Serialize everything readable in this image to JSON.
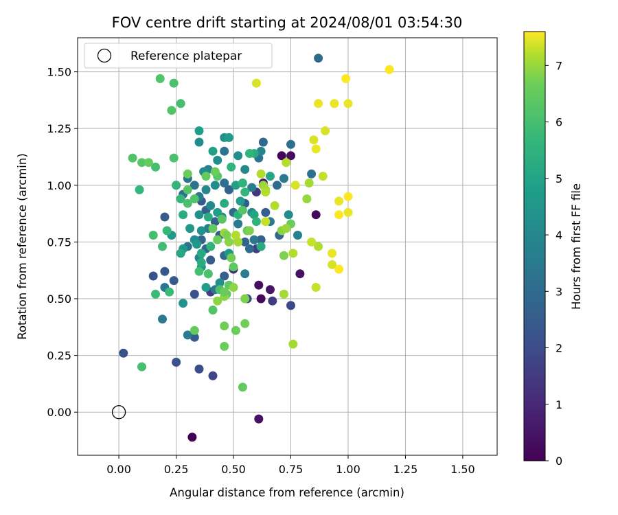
{
  "chart_data": {
    "type": "scatter",
    "title": "FOV centre drift starting at 2024/08/01 03:54:30",
    "xlabel": "Angular distance from reference (arcmin)",
    "ylabel": "Rotation from reference (arcmin)",
    "xlim": [
      -0.18,
      1.65
    ],
    "ylim": [
      -0.19,
      1.65
    ],
    "xticks": [
      "0.00",
      "0.25",
      "0.50",
      "0.75",
      "1.00",
      "1.25",
      "1.50"
    ],
    "xtick_values": [
      0,
      0.25,
      0.5,
      0.75,
      1.0,
      1.25,
      1.5
    ],
    "yticks": [
      "0.00",
      "0.25",
      "0.50",
      "0.75",
      "1.00",
      "1.25",
      "1.50"
    ],
    "ytick_values": [
      0,
      0.25,
      0.5,
      0.75,
      1.0,
      1.25,
      1.5
    ],
    "grid": true,
    "colormap": "viridis",
    "colorbar": {
      "label": "Hours from first FF file",
      "ticks": [
        "0",
        "1",
        "2",
        "3",
        "4",
        "5",
        "6",
        "7"
      ],
      "tick_values": [
        0,
        1,
        2,
        3,
        4,
        5,
        6,
        7
      ],
      "range": [
        0,
        7.6
      ]
    },
    "legend": {
      "entries": [
        "Reference platepar"
      ],
      "position": "upper-left"
    },
    "reference_point": {
      "x": 0,
      "y": 0,
      "label": "Reference platepar"
    },
    "points": [
      [
        0.32,
        -0.11,
        0.0
      ],
      [
        0.61,
        -0.03,
        0.4
      ],
      [
        0.61,
        0.56,
        0.3
      ],
      [
        0.62,
        0.5,
        0.2
      ],
      [
        0.66,
        0.54,
        0.5
      ],
      [
        0.71,
        1.13,
        0.1
      ],
      [
        0.75,
        1.13,
        0.3
      ],
      [
        0.79,
        0.61,
        0.4
      ],
      [
        0.86,
        0.87,
        0.2
      ],
      [
        0.63,
        1.01,
        0.6
      ],
      [
        0.67,
        0.49,
        1.5
      ],
      [
        0.75,
        0.47,
        1.9
      ],
      [
        0.5,
        0.63,
        1.2
      ],
      [
        0.6,
        0.97,
        1.4
      ],
      [
        0.6,
        0.72,
        1.6
      ],
      [
        0.56,
        0.5,
        2.0
      ],
      [
        0.4,
        0.53,
        1.6
      ],
      [
        0.41,
        0.16,
        1.8
      ],
      [
        0.35,
        0.19,
        2.0
      ],
      [
        0.25,
        0.22,
        2.2
      ],
      [
        0.02,
        0.26,
        2.2
      ],
      [
        0.33,
        0.33,
        2.5
      ],
      [
        0.33,
        0.52,
        2.2
      ],
      [
        0.15,
        0.6,
        2.2
      ],
      [
        0.2,
        0.62,
        2.3
      ],
      [
        0.24,
        0.58,
        2.4
      ],
      [
        0.2,
        0.86,
        2.5
      ],
      [
        0.36,
        0.93,
        2.4
      ],
      [
        0.42,
        0.84,
        2.6
      ],
      [
        0.44,
        0.78,
        2.4
      ],
      [
        0.46,
        0.6,
        2.6
      ],
      [
        0.36,
        0.76,
        2.8
      ],
      [
        0.38,
        0.72,
        2.8
      ],
      [
        0.4,
        0.67,
        2.5
      ],
      [
        0.38,
        0.89,
        2.6
      ],
      [
        0.46,
        0.69,
        2.9
      ],
      [
        0.48,
        0.98,
        2.7
      ],
      [
        0.5,
        0.88,
        2.9
      ],
      [
        0.55,
        0.92,
        2.5
      ],
      [
        0.55,
        0.75,
        2.8
      ],
      [
        0.57,
        0.72,
        3.0
      ],
      [
        0.62,
        0.76,
        2.6
      ],
      [
        0.64,
        0.88,
        2.6
      ],
      [
        0.7,
        0.78,
        2.9
      ],
      [
        0.69,
        1.0,
        3.0
      ],
      [
        0.63,
        1.19,
        2.9
      ],
      [
        0.75,
        1.18,
        3.1
      ],
      [
        0.84,
        1.05,
        3.2
      ],
      [
        0.87,
        1.56,
        3.0
      ],
      [
        0.46,
        1.15,
        3.3
      ],
      [
        0.46,
        1.01,
        3.2
      ],
      [
        0.33,
        1.0,
        3.3
      ],
      [
        0.3,
        1.03,
        3.3
      ],
      [
        0.2,
        0.55,
        3.4
      ],
      [
        0.19,
        0.41,
        3.5
      ],
      [
        0.3,
        0.34,
        3.5
      ],
      [
        0.3,
        0.73,
        3.3
      ],
      [
        0.28,
        0.96,
        3.1
      ],
      [
        0.35,
        0.95,
        3.5
      ],
      [
        0.39,
        0.81,
        3.7
      ],
      [
        0.42,
        0.54,
        3.4
      ],
      [
        0.35,
        0.68,
        3.8
      ],
      [
        0.52,
        0.83,
        3.6
      ],
      [
        0.55,
        0.61,
        3.6
      ],
      [
        0.59,
        0.76,
        3.4
      ],
      [
        0.61,
        1.12,
        3.3
      ],
      [
        0.66,
        0.84,
        3.6
      ],
      [
        0.72,
        1.03,
        3.5
      ],
      [
        0.74,
        0.87,
        4.1
      ],
      [
        0.78,
        0.78,
        3.8
      ],
      [
        0.62,
        1.15,
        3.9
      ],
      [
        0.58,
        0.99,
        3.7
      ],
      [
        0.58,
        0.88,
        4.0
      ],
      [
        0.55,
        1.07,
        4.0
      ],
      [
        0.52,
        1.13,
        4.2
      ],
      [
        0.39,
        1.07,
        3.8
      ],
      [
        0.37,
        1.06,
        4.1
      ],
      [
        0.38,
        0.98,
        4.0
      ],
      [
        0.4,
        0.91,
        4.0
      ],
      [
        0.42,
        1.0,
        4.1
      ],
      [
        0.45,
        0.86,
        4.1
      ],
      [
        0.43,
        1.11,
        4.2
      ],
      [
        0.35,
        0.87,
        4.3
      ],
      [
        0.36,
        0.8,
        4.3
      ],
      [
        0.33,
        0.76,
        4.2
      ],
      [
        0.34,
        0.74,
        4.5
      ],
      [
        0.31,
        0.81,
        4.6
      ],
      [
        0.28,
        0.72,
        4.5
      ],
      [
        0.28,
        0.48,
        4.4
      ],
      [
        0.23,
        0.78,
        4.6
      ],
      [
        0.36,
        0.64,
        4.5
      ],
      [
        0.38,
        0.55,
        4.7
      ],
      [
        0.44,
        0.57,
        4.3
      ],
      [
        0.43,
        0.88,
        4.8
      ],
      [
        0.46,
        1.21,
        4.4
      ],
      [
        0.48,
        1.21,
        4.7
      ],
      [
        0.35,
        1.19,
        4.2
      ],
      [
        0.35,
        1.24,
        4.8
      ],
      [
        0.41,
        1.15,
        4.9
      ],
      [
        0.51,
        1.0,
        4.9
      ],
      [
        0.48,
        0.7,
        4.5
      ],
      [
        0.53,
        0.93,
        4.8
      ],
      [
        0.59,
        0.87,
        5.0
      ],
      [
        0.62,
        0.73,
        5.2
      ],
      [
        0.66,
        1.04,
        5.0
      ],
      [
        0.59,
        1.14,
        5.3
      ],
      [
        0.27,
        0.7,
        5.1
      ],
      [
        0.25,
        1.0,
        5.2
      ],
      [
        0.28,
        0.87,
        5.3
      ],
      [
        0.36,
        0.7,
        5.2
      ],
      [
        0.39,
        0.86,
        5.3
      ],
      [
        0.39,
        0.61,
        5.4
      ],
      [
        0.36,
        0.66,
        5.3
      ],
      [
        0.4,
        0.73,
        5.5
      ],
      [
        0.46,
        0.92,
        5.3
      ],
      [
        0.49,
        1.08,
        5.5
      ],
      [
        0.52,
        0.87,
        5.4
      ],
      [
        0.54,
        1.01,
        5.5
      ],
      [
        0.57,
        1.14,
        5.6
      ],
      [
        0.6,
        0.84,
        5.5
      ],
      [
        0.55,
        0.97,
        5.6
      ],
      [
        0.25,
        1.0,
        5.6
      ],
      [
        0.27,
        0.94,
        5.7
      ],
      [
        0.21,
        0.8,
        5.7
      ],
      [
        0.22,
        0.53,
        5.8
      ],
      [
        0.16,
        0.52,
        5.8
      ],
      [
        0.19,
        0.73,
        5.9
      ],
      [
        0.15,
        0.78,
        6.0
      ],
      [
        0.09,
        0.98,
        5.7
      ],
      [
        0.16,
        1.08,
        6.0
      ],
      [
        0.24,
        1.12,
        6.1
      ],
      [
        0.27,
        1.36,
        6.0
      ],
      [
        0.23,
        1.33,
        6.2
      ],
      [
        0.24,
        1.45,
        6.1
      ],
      [
        0.18,
        1.47,
        6.2
      ],
      [
        0.1,
        0.2,
        6.0
      ],
      [
        0.3,
        0.92,
        6.1
      ],
      [
        0.33,
        0.94,
        6.2
      ],
      [
        0.3,
        0.98,
        6.3
      ],
      [
        0.35,
        0.62,
        6.0
      ],
      [
        0.39,
        0.61,
        6.1
      ],
      [
        0.41,
        0.45,
        6.2
      ],
      [
        0.43,
        1.04,
        6.3
      ],
      [
        0.44,
        0.54,
        6.1
      ],
      [
        0.45,
        0.85,
        6.3
      ],
      [
        0.47,
        0.52,
        6.4
      ],
      [
        0.5,
        0.64,
        6.4
      ],
      [
        0.54,
        0.89,
        6.3
      ],
      [
        0.56,
        0.8,
        6.5
      ],
      [
        0.33,
        0.36,
        6.5
      ],
      [
        0.41,
        0.81,
        6.5
      ],
      [
        0.43,
        0.76,
        6.6
      ],
      [
        0.48,
        0.56,
        6.4
      ],
      [
        0.49,
        0.68,
        6.7
      ],
      [
        0.55,
        0.5,
        6.8
      ],
      [
        0.54,
        0.11,
        6.5
      ],
      [
        0.46,
        0.29,
        6.6
      ],
      [
        0.51,
        0.36,
        6.6
      ],
      [
        0.55,
        0.39,
        6.7
      ],
      [
        0.46,
        0.38,
        6.7
      ],
      [
        0.42,
        1.06,
        6.6
      ],
      [
        0.06,
        1.12,
        6.2
      ],
      [
        0.1,
        1.1,
        6.3
      ],
      [
        0.13,
        1.1,
        6.5
      ],
      [
        0.3,
        1.05,
        6.6
      ],
      [
        0.38,
        1.04,
        6.5
      ],
      [
        0.75,
        0.83,
        6.6
      ],
      [
        0.72,
        0.69,
        6.8
      ],
      [
        0.71,
        0.8,
        6.9
      ],
      [
        0.73,
        0.81,
        7.0
      ],
      [
        0.82,
        0.94,
        7.0
      ],
      [
        0.83,
        1.01,
        7.1
      ],
      [
        0.76,
        0.7,
        7.2
      ],
      [
        0.76,
        0.3,
        7.1
      ],
      [
        0.72,
        0.52,
        7.1
      ],
      [
        0.73,
        1.1,
        7.2
      ],
      [
        0.86,
        0.55,
        7.3
      ],
      [
        0.84,
        0.75,
        7.3
      ],
      [
        0.87,
        0.73,
        7.2
      ],
      [
        0.89,
        1.04,
        7.3
      ],
      [
        0.63,
        1.0,
        7.0
      ],
      [
        0.64,
        0.98,
        7.1
      ],
      [
        0.62,
        1.05,
        7.2
      ],
      [
        0.64,
        0.84,
        7.3
      ],
      [
        0.64,
        0.97,
        7.2
      ],
      [
        0.77,
        1.0,
        7.4
      ],
      [
        0.68,
        0.91,
        7.2
      ],
      [
        0.6,
        1.45,
        7.4
      ],
      [
        0.85,
        1.2,
        7.4
      ],
      [
        0.86,
        1.16,
        7.5
      ],
      [
        0.87,
        1.36,
        7.5
      ],
      [
        0.9,
        1.24,
        7.4
      ],
      [
        0.94,
        1.36,
        7.5
      ],
      [
        0.99,
        1.47,
        7.6
      ],
      [
        1.0,
        1.36,
        7.5
      ],
      [
        1.18,
        1.51,
        7.6
      ],
      [
        0.93,
        0.7,
        7.5
      ],
      [
        0.93,
        0.65,
        7.4
      ],
      [
        0.96,
        0.63,
        7.6
      ],
      [
        0.96,
        0.93,
        7.5
      ],
      [
        0.96,
        0.87,
        7.6
      ],
      [
        1.0,
        0.88,
        7.5
      ],
      [
        1.0,
        0.95,
        7.6
      ],
      [
        0.46,
        0.51,
        6.9
      ],
      [
        0.48,
        0.75,
        6.9
      ],
      [
        0.46,
        0.79,
        7.0
      ],
      [
        0.47,
        0.78,
        6.8
      ],
      [
        0.43,
        0.49,
        6.9
      ],
      [
        0.46,
        0.53,
        6.6
      ],
      [
        0.51,
        0.78,
        7.2
      ],
      [
        0.5,
        0.55,
        6.9
      ],
      [
        0.52,
        0.75,
        7.1
      ],
      [
        0.57,
        0.8,
        6.8
      ]
    ]
  }
}
